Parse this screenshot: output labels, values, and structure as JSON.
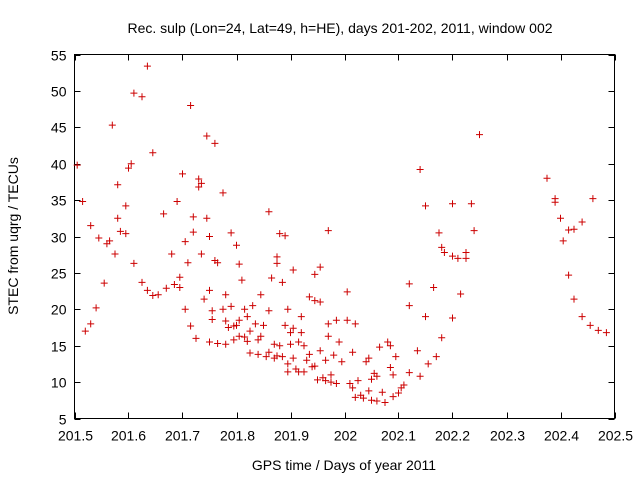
{
  "chart_data": {
    "type": "scatter",
    "title": "Rec. sulp (Lon=24, Lat=49, h=HE), days 201-202, 2011, window 002",
    "xlabel": "GPS time / Days of year 2011",
    "ylabel": "STEC from uqrg / TECUs",
    "xlim": [
      201.5,
      202.5
    ],
    "ylim": [
      5,
      55
    ],
    "xticks": [
      201.5,
      201.6,
      201.7,
      201.8,
      201.9,
      202,
      202.1,
      202.2,
      202.3,
      202.4,
      202.5
    ],
    "xtick_labels": [
      "201.5",
      "201.6",
      "201.7",
      "201.8",
      "201.9",
      "202",
      "202.1",
      "202.2",
      "202.3",
      "202.4",
      "202.5"
    ],
    "yticks": [
      5,
      10,
      15,
      20,
      25,
      30,
      35,
      40,
      45,
      50,
      55
    ],
    "ytick_labels": [
      "5",
      "10",
      "15",
      "20",
      "25",
      "30",
      "35",
      "40",
      "45",
      "50",
      "55"
    ],
    "grid": false,
    "marker": "+",
    "color": "#cc0000",
    "points": [
      [
        201.505,
        39.8
      ],
      [
        201.515,
        34.8
      ],
      [
        201.52,
        17.0
      ],
      [
        201.53,
        31.5
      ],
      [
        201.53,
        18.0
      ],
      [
        201.54,
        20.2
      ],
      [
        201.545,
        29.8
      ],
      [
        201.555,
        23.6
      ],
      [
        201.56,
        29.0
      ],
      [
        201.565,
        29.4
      ],
      [
        201.57,
        45.3
      ],
      [
        201.575,
        27.6
      ],
      [
        201.58,
        37.1
      ],
      [
        201.58,
        32.5
      ],
      [
        201.585,
        30.7
      ],
      [
        201.595,
        34.2
      ],
      [
        201.595,
        30.4
      ],
      [
        201.6,
        39.4
      ],
      [
        201.605,
        40.0
      ],
      [
        201.61,
        49.7
      ],
      [
        201.61,
        26.3
      ],
      [
        201.625,
        49.2
      ],
      [
        201.625,
        23.7
      ],
      [
        201.635,
        53.4
      ],
      [
        201.635,
        22.6
      ],
      [
        201.645,
        41.5
      ],
      [
        201.645,
        21.9
      ],
      [
        201.655,
        22.0
      ],
      [
        201.665,
        33.1
      ],
      [
        201.67,
        22.9
      ],
      [
        201.68,
        27.6
      ],
      [
        201.685,
        23.4
      ],
      [
        201.69,
        34.8
      ],
      [
        201.695,
        24.4
      ],
      [
        201.695,
        23.0
      ],
      [
        201.7,
        38.6
      ],
      [
        201.705,
        29.3
      ],
      [
        201.705,
        20.0
      ],
      [
        201.71,
        26.4
      ],
      [
        201.715,
        48.0
      ],
      [
        201.715,
        17.7
      ],
      [
        201.72,
        32.7
      ],
      [
        201.72,
        30.6
      ],
      [
        201.725,
        16.0
      ],
      [
        201.73,
        37.9
      ],
      [
        201.73,
        36.8
      ],
      [
        201.735,
        37.3
      ],
      [
        201.735,
        27.6
      ],
      [
        201.74,
        21.4
      ],
      [
        201.745,
        43.8
      ],
      [
        201.745,
        32.5
      ],
      [
        201.75,
        30.0
      ],
      [
        201.75,
        22.6
      ],
      [
        201.75,
        15.5
      ],
      [
        201.755,
        19.8
      ],
      [
        201.755,
        18.6
      ],
      [
        201.76,
        42.8
      ],
      [
        201.76,
        26.7
      ],
      [
        201.765,
        26.4
      ],
      [
        201.765,
        15.3
      ],
      [
        201.775,
        36.0
      ],
      [
        201.775,
        20.0
      ],
      [
        201.78,
        22.0
      ],
      [
        201.78,
        18.4
      ],
      [
        201.78,
        15.2
      ],
      [
        201.785,
        17.5
      ],
      [
        201.79,
        30.5
      ],
      [
        201.79,
        20.4
      ],
      [
        201.795,
        17.7
      ],
      [
        201.795,
        15.8
      ],
      [
        201.8,
        28.8
      ],
      [
        201.8,
        17.8
      ],
      [
        201.805,
        26.2
      ],
      [
        201.805,
        18.5
      ],
      [
        201.805,
        16.3
      ],
      [
        201.81,
        24.0
      ],
      [
        201.815,
        20.0
      ],
      [
        201.815,
        16.2
      ],
      [
        201.82,
        19.0
      ],
      [
        201.82,
        15.6
      ],
      [
        201.825,
        17.0
      ],
      [
        201.825,
        14.0
      ],
      [
        201.83,
        20.5
      ],
      [
        201.835,
        18.0
      ],
      [
        201.84,
        15.8
      ],
      [
        201.84,
        13.8
      ],
      [
        201.845,
        22.0
      ],
      [
        201.845,
        16.3
      ],
      [
        201.85,
        17.8
      ],
      [
        201.855,
        13.5
      ],
      [
        201.86,
        33.4
      ],
      [
        201.86,
        19.8
      ],
      [
        201.86,
        14.1
      ],
      [
        201.865,
        24.3
      ],
      [
        201.87,
        15.2
      ],
      [
        201.87,
        13.3
      ],
      [
        201.875,
        27.2
      ],
      [
        201.875,
        26.3
      ],
      [
        201.875,
        13.6
      ],
      [
        201.88,
        30.4
      ],
      [
        201.88,
        15.0
      ],
      [
        201.885,
        23.7
      ],
      [
        201.885,
        13.5
      ],
      [
        201.89,
        30.1
      ],
      [
        201.89,
        17.8
      ],
      [
        201.895,
        20.0
      ],
      [
        201.895,
        12.5
      ],
      [
        201.895,
        11.4
      ],
      [
        201.9,
        16.8
      ],
      [
        201.9,
        15.2
      ],
      [
        201.905,
        25.4
      ],
      [
        201.905,
        17.4
      ],
      [
        201.905,
        13.3
      ],
      [
        201.91,
        11.8
      ],
      [
        201.915,
        15.5
      ],
      [
        201.915,
        11.4
      ],
      [
        201.92,
        19.0
      ],
      [
        201.92,
        16.8
      ],
      [
        201.925,
        15.0
      ],
      [
        201.925,
        11.4
      ],
      [
        201.93,
        13.0
      ],
      [
        201.935,
        21.7
      ],
      [
        201.935,
        13.8
      ],
      [
        201.94,
        12.1
      ],
      [
        201.945,
        24.8
      ],
      [
        201.945,
        21.2
      ],
      [
        201.945,
        12.2
      ],
      [
        201.95,
        10.3
      ],
      [
        201.955,
        25.8
      ],
      [
        201.955,
        21.0
      ],
      [
        201.955,
        14.3
      ],
      [
        201.96,
        10.6
      ],
      [
        201.965,
        13.0
      ],
      [
        201.965,
        10.2
      ],
      [
        201.97,
        30.8
      ],
      [
        201.97,
        18.0
      ],
      [
        201.97,
        16.3
      ],
      [
        201.975,
        11.0
      ],
      [
        201.975,
        10.0
      ],
      [
        201.98,
        13.7
      ],
      [
        201.985,
        18.5
      ],
      [
        201.985,
        9.8
      ],
      [
        201.99,
        15.5
      ],
      [
        201.995,
        12.8
      ],
      [
        202.005,
        22.4
      ],
      [
        202.005,
        18.5
      ],
      [
        202.01,
        9.8
      ],
      [
        202.015,
        14.1
      ],
      [
        202.015,
        9.2
      ],
      [
        202.02,
        18.0
      ],
      [
        202.02,
        7.9
      ],
      [
        202.025,
        10.2
      ],
      [
        202.03,
        8.2
      ],
      [
        202.035,
        7.8
      ],
      [
        202.04,
        12.8
      ],
      [
        202.045,
        13.3
      ],
      [
        202.045,
        8.8
      ],
      [
        202.05,
        10.4
      ],
      [
        202.05,
        7.5
      ],
      [
        202.055,
        11.2
      ],
      [
        202.06,
        10.8
      ],
      [
        202.06,
        7.4
      ],
      [
        202.065,
        14.8
      ],
      [
        202.07,
        8.6
      ],
      [
        202.075,
        7.2
      ],
      [
        202.08,
        15.5
      ],
      [
        202.085,
        15.0
      ],
      [
        202.085,
        12.0
      ],
      [
        202.09,
        11.0
      ],
      [
        202.09,
        8.0
      ],
      [
        202.095,
        13.5
      ],
      [
        202.1,
        8.5
      ],
      [
        202.105,
        9.2
      ],
      [
        202.11,
        9.6
      ],
      [
        202.12,
        23.5
      ],
      [
        202.12,
        20.5
      ],
      [
        202.12,
        11.3
      ],
      [
        202.135,
        14.3
      ],
      [
        202.14,
        39.2
      ],
      [
        202.14,
        10.8
      ],
      [
        202.15,
        34.2
      ],
      [
        202.15,
        19.0
      ],
      [
        202.155,
        12.5
      ],
      [
        202.165,
        23.0
      ],
      [
        202.17,
        13.5
      ],
      [
        202.175,
        30.5
      ],
      [
        202.18,
        28.5
      ],
      [
        202.18,
        16.1
      ],
      [
        202.185,
        27.8
      ],
      [
        202.2,
        34.5
      ],
      [
        202.2,
        27.3
      ],
      [
        202.2,
        18.8
      ],
      [
        202.21,
        27.0
      ],
      [
        202.215,
        22.1
      ],
      [
        202.225,
        27.8
      ],
      [
        202.225,
        27.0
      ],
      [
        202.235,
        34.5
      ],
      [
        202.24,
        30.8
      ],
      [
        202.25,
        44.0
      ],
      [
        202.375,
        38.0
      ],
      [
        202.39,
        35.2
      ],
      [
        202.39,
        34.7
      ],
      [
        202.4,
        32.5
      ],
      [
        202.405,
        29.4
      ],
      [
        202.415,
        30.9
      ],
      [
        202.415,
        24.7
      ],
      [
        202.425,
        31.0
      ],
      [
        202.425,
        21.4
      ],
      [
        202.44,
        32.0
      ],
      [
        202.44,
        19.0
      ],
      [
        202.455,
        17.8
      ],
      [
        202.46,
        35.2
      ],
      [
        202.47,
        17.1
      ],
      [
        202.485,
        16.8
      ]
    ]
  }
}
